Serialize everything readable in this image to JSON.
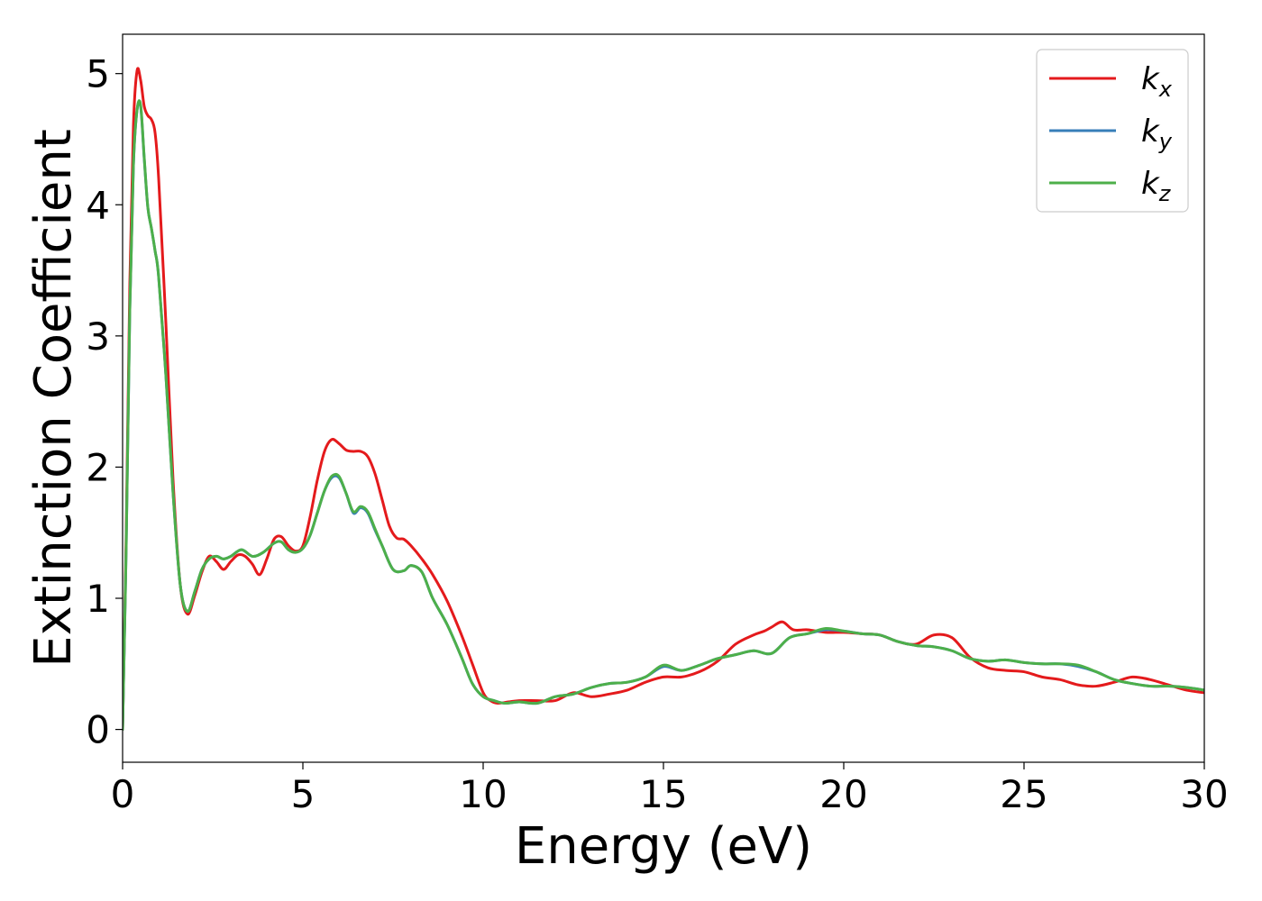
{
  "chart_data": {
    "type": "line",
    "xlabel": "Energy (eV)",
    "ylabel": "Extinction Coefficient",
    "xlim": [
      0,
      30
    ],
    "ylim": [
      -0.25,
      5.3
    ],
    "xticks": [
      0,
      5,
      10,
      15,
      20,
      25,
      30
    ],
    "yticks": [
      0,
      1,
      2,
      3,
      4,
      5
    ],
    "grid": false,
    "legend_position": "top-right",
    "series": [
      {
        "name": "k_x",
        "label_main": "k",
        "label_sub": "x",
        "color": "#e41a1c",
        "x": [
          0.0,
          0.1,
          0.2,
          0.3,
          0.4,
          0.5,
          0.6,
          0.7,
          0.8,
          0.9,
          1.0,
          1.2,
          1.4,
          1.6,
          1.8,
          2.0,
          2.2,
          2.4,
          2.6,
          2.8,
          3.0,
          3.2,
          3.4,
          3.6,
          3.8,
          4.0,
          4.2,
          4.4,
          4.6,
          4.8,
          5.0,
          5.2,
          5.4,
          5.6,
          5.8,
          6.0,
          6.2,
          6.4,
          6.6,
          6.8,
          7.0,
          7.2,
          7.4,
          7.6,
          7.8,
          8.0,
          8.3,
          8.6,
          9.0,
          9.4,
          9.7,
          10.0,
          10.2,
          10.4,
          10.7,
          11.0,
          11.5,
          12.0,
          12.5,
          13.0,
          13.5,
          14.0,
          14.5,
          15.0,
          15.5,
          16.0,
          16.5,
          17.0,
          17.5,
          17.8,
          18.0,
          18.3,
          18.6,
          19.0,
          19.5,
          20.0,
          20.5,
          21.0,
          21.5,
          22.0,
          22.5,
          23.0,
          23.5,
          24.0,
          24.5,
          25.0,
          25.5,
          26.0,
          26.5,
          27.0,
          27.5,
          28.0,
          28.5,
          29.0,
          29.5,
          30.0
        ],
        "y": [
          0.0,
          1.5,
          3.4,
          4.6,
          5.02,
          4.95,
          4.75,
          4.68,
          4.65,
          4.55,
          4.2,
          3.1,
          1.9,
          1.1,
          0.88,
          1.02,
          1.2,
          1.32,
          1.28,
          1.22,
          1.28,
          1.33,
          1.32,
          1.26,
          1.18,
          1.3,
          1.45,
          1.47,
          1.4,
          1.36,
          1.4,
          1.62,
          1.9,
          2.12,
          2.21,
          2.18,
          2.13,
          2.12,
          2.12,
          2.08,
          1.95,
          1.75,
          1.55,
          1.46,
          1.45,
          1.4,
          1.3,
          1.18,
          0.98,
          0.72,
          0.5,
          0.28,
          0.22,
          0.2,
          0.21,
          0.22,
          0.22,
          0.22,
          0.28,
          0.25,
          0.27,
          0.3,
          0.36,
          0.4,
          0.4,
          0.44,
          0.52,
          0.65,
          0.72,
          0.75,
          0.78,
          0.82,
          0.76,
          0.76,
          0.74,
          0.74,
          0.73,
          0.72,
          0.67,
          0.65,
          0.72,
          0.7,
          0.55,
          0.47,
          0.45,
          0.44,
          0.4,
          0.38,
          0.34,
          0.33,
          0.36,
          0.4,
          0.38,
          0.34,
          0.3,
          0.28
        ]
      },
      {
        "name": "k_y",
        "label_main": "k",
        "label_sub": "y",
        "color": "#377eb8",
        "x": [
          0.0,
          0.1,
          0.2,
          0.3,
          0.4,
          0.5,
          0.6,
          0.7,
          0.8,
          0.9,
          1.0,
          1.2,
          1.4,
          1.6,
          1.8,
          2.0,
          2.2,
          2.4,
          2.6,
          2.8,
          3.0,
          3.3,
          3.6,
          3.9,
          4.2,
          4.4,
          4.6,
          4.8,
          5.0,
          5.2,
          5.4,
          5.6,
          5.8,
          6.0,
          6.2,
          6.4,
          6.6,
          6.8,
          7.0,
          7.2,
          7.5,
          7.8,
          8.0,
          8.3,
          8.6,
          9.0,
          9.4,
          9.7,
          10.0,
          10.3,
          10.6,
          11.0,
          11.5,
          12.0,
          12.5,
          13.0,
          13.5,
          14.0,
          14.5,
          15.0,
          15.5,
          16.0,
          16.5,
          17.0,
          17.5,
          18.0,
          18.5,
          19.0,
          19.5,
          20.0,
          20.5,
          21.0,
          21.5,
          22.0,
          22.5,
          23.0,
          23.5,
          24.0,
          24.5,
          25.0,
          25.5,
          26.0,
          26.5,
          27.0,
          27.5,
          28.0,
          28.5,
          29.0,
          29.5,
          30.0
        ],
        "y": [
          0.0,
          1.4,
          3.2,
          4.3,
          4.72,
          4.75,
          4.35,
          3.98,
          3.82,
          3.65,
          3.45,
          2.7,
          1.8,
          1.1,
          0.9,
          1.05,
          1.22,
          1.3,
          1.32,
          1.3,
          1.32,
          1.37,
          1.32,
          1.35,
          1.42,
          1.43,
          1.37,
          1.35,
          1.38,
          1.48,
          1.65,
          1.82,
          1.92,
          1.92,
          1.8,
          1.65,
          1.69,
          1.65,
          1.52,
          1.4,
          1.22,
          1.21,
          1.25,
          1.2,
          1.0,
          0.8,
          0.55,
          0.35,
          0.25,
          0.22,
          0.2,
          0.21,
          0.2,
          0.25,
          0.27,
          0.32,
          0.35,
          0.36,
          0.4,
          0.48,
          0.45,
          0.49,
          0.54,
          0.57,
          0.6,
          0.58,
          0.7,
          0.73,
          0.76,
          0.75,
          0.73,
          0.72,
          0.67,
          0.64,
          0.63,
          0.6,
          0.54,
          0.52,
          0.53,
          0.51,
          0.5,
          0.5,
          0.48,
          0.44,
          0.38,
          0.35,
          0.33,
          0.33,
          0.32,
          0.3
        ]
      },
      {
        "name": "k_z",
        "label_main": "k",
        "label_sub": "z",
        "color": "#4daf4a",
        "x": [
          0.0,
          0.1,
          0.2,
          0.3,
          0.4,
          0.5,
          0.6,
          0.7,
          0.8,
          0.9,
          1.0,
          1.2,
          1.4,
          1.6,
          1.8,
          2.0,
          2.2,
          2.4,
          2.6,
          2.8,
          3.0,
          3.3,
          3.6,
          3.9,
          4.2,
          4.4,
          4.6,
          4.8,
          5.0,
          5.2,
          5.4,
          5.6,
          5.8,
          6.0,
          6.2,
          6.4,
          6.6,
          6.8,
          7.0,
          7.2,
          7.5,
          7.8,
          8.0,
          8.3,
          8.6,
          9.0,
          9.4,
          9.7,
          10.0,
          10.3,
          10.6,
          11.0,
          11.5,
          12.0,
          12.5,
          13.0,
          13.5,
          14.0,
          14.5,
          15.0,
          15.5,
          16.0,
          16.5,
          17.0,
          17.5,
          18.0,
          18.5,
          19.0,
          19.5,
          20.0,
          20.5,
          21.0,
          21.5,
          22.0,
          22.5,
          23.0,
          23.5,
          24.0,
          24.5,
          25.0,
          25.5,
          26.0,
          26.5,
          27.0,
          27.5,
          28.0,
          28.5,
          29.0,
          29.5,
          30.0
        ],
        "y": [
          0.0,
          1.4,
          3.2,
          4.3,
          4.72,
          4.76,
          4.36,
          3.98,
          3.82,
          3.65,
          3.45,
          2.7,
          1.8,
          1.1,
          0.9,
          1.05,
          1.22,
          1.3,
          1.32,
          1.3,
          1.32,
          1.37,
          1.32,
          1.35,
          1.42,
          1.43,
          1.37,
          1.35,
          1.38,
          1.48,
          1.65,
          1.82,
          1.93,
          1.93,
          1.8,
          1.66,
          1.7,
          1.66,
          1.53,
          1.4,
          1.22,
          1.21,
          1.25,
          1.2,
          1.0,
          0.8,
          0.55,
          0.35,
          0.25,
          0.22,
          0.2,
          0.21,
          0.2,
          0.25,
          0.27,
          0.32,
          0.35,
          0.36,
          0.4,
          0.49,
          0.45,
          0.49,
          0.54,
          0.57,
          0.6,
          0.58,
          0.7,
          0.73,
          0.77,
          0.75,
          0.73,
          0.72,
          0.67,
          0.64,
          0.63,
          0.6,
          0.54,
          0.52,
          0.53,
          0.51,
          0.5,
          0.5,
          0.49,
          0.44,
          0.38,
          0.35,
          0.33,
          0.33,
          0.32,
          0.3
        ]
      }
    ]
  }
}
